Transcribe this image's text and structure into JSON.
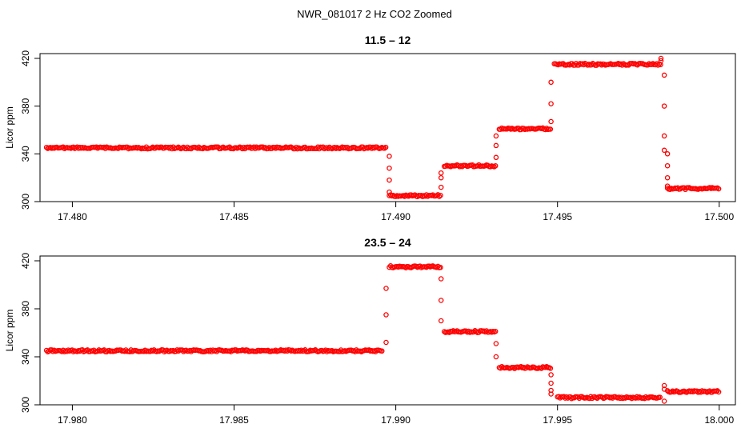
{
  "figure": {
    "title": "NWR_081017  2 Hz CO2 Zoomed"
  },
  "colors": {
    "points": "#ff0000",
    "axes": "#000000"
  },
  "chart_data": [
    {
      "type": "scatter",
      "title": "11.5 – 12",
      "xlabel": "",
      "ylabel": "Licor ppm",
      "xlim": [
        17.479,
        17.5005
      ],
      "ylim": [
        300,
        424
      ],
      "xticks": [
        17.48,
        17.485,
        17.49,
        17.495,
        17.5
      ],
      "xtick_labels": [
        "17.480",
        "17.485",
        "17.490",
        "17.495",
        "17.500"
      ],
      "yticks": [
        300,
        340,
        380,
        420
      ],
      "ytick_labels": [
        "300",
        "340",
        "380",
        "420"
      ],
      "grid": false,
      "legend": "none",
      "series": [
        {
          "marker": "open-circle",
          "segments": [
            {
              "x_start": 17.4792,
              "x_end": 17.4897,
              "y": 345
            },
            {
              "x_start": 17.4898,
              "x_end": 17.4914,
              "y": 305
            },
            {
              "x_start": 17.4915,
              "x_end": 17.4931,
              "y": 330
            },
            {
              "x_start": 17.4932,
              "x_end": 17.4948,
              "y": 361
            },
            {
              "x_start": 17.4949,
              "x_end": 17.4982,
              "y": 415
            },
            {
              "x_start": 17.4984,
              "x_end": 17.5,
              "y": 311
            }
          ],
          "transitions": [
            {
              "x": 17.4898,
              "y": [
                338,
                328,
                318,
                308
              ]
            },
            {
              "x": 17.4914,
              "y": [
                312,
                320,
                324
              ]
            },
            {
              "x": 17.4931,
              "y": [
                337,
                347,
                355
              ]
            },
            {
              "x": 17.4948,
              "y": [
                367,
                382,
                400
              ]
            },
            {
              "x": 17.4982,
              "y": [
                420,
                418
              ]
            },
            {
              "x": 17.4983,
              "y": [
                406,
                380,
                355,
                343
              ]
            },
            {
              "x": 17.4984,
              "y": [
                340,
                330,
                320,
                313
              ]
            }
          ]
        }
      ]
    },
    {
      "type": "scatter",
      "title": "23.5 – 24",
      "xlabel": "",
      "ylabel": "Licor ppm",
      "xlim": [
        17.979,
        18.0005
      ],
      "ylim": [
        300,
        424
      ],
      "xticks": [
        17.98,
        17.985,
        17.99,
        17.995,
        18.0
      ],
      "xtick_labels": [
        "17.980",
        "17.985",
        "17.990",
        "17.995",
        "18.000"
      ],
      "yticks": [
        300,
        340,
        380,
        420
      ],
      "ytick_labels": [
        "300",
        "340",
        "380",
        "420"
      ],
      "grid": false,
      "legend": "none",
      "series": [
        {
          "marker": "open-circle",
          "segments": [
            {
              "x_start": 17.9792,
              "x_end": 17.9896,
              "y": 345
            },
            {
              "x_start": 17.9898,
              "x_end": 17.9914,
              "y": 415
            },
            {
              "x_start": 17.9915,
              "x_end": 17.9931,
              "y": 361
            },
            {
              "x_start": 17.9932,
              "x_end": 17.9948,
              "y": 331
            },
            {
              "x_start": 17.995,
              "x_end": 17.9982,
              "y": 306
            },
            {
              "x_start": 17.9984,
              "x_end": 18.0,
              "y": 311
            }
          ],
          "transitions": [
            {
              "x": 17.9897,
              "y": [
                352,
                375,
                397
              ]
            },
            {
              "x": 17.9914,
              "y": [
                405,
                387,
                370
              ]
            },
            {
              "x": 17.9931,
              "y": [
                351,
                340
              ]
            },
            {
              "x": 17.9948,
              "y": [
                325,
                318,
                312,
                309
              ]
            },
            {
              "x": 17.9983,
              "y": [
                303,
                313,
                316
              ]
            }
          ]
        }
      ]
    }
  ]
}
